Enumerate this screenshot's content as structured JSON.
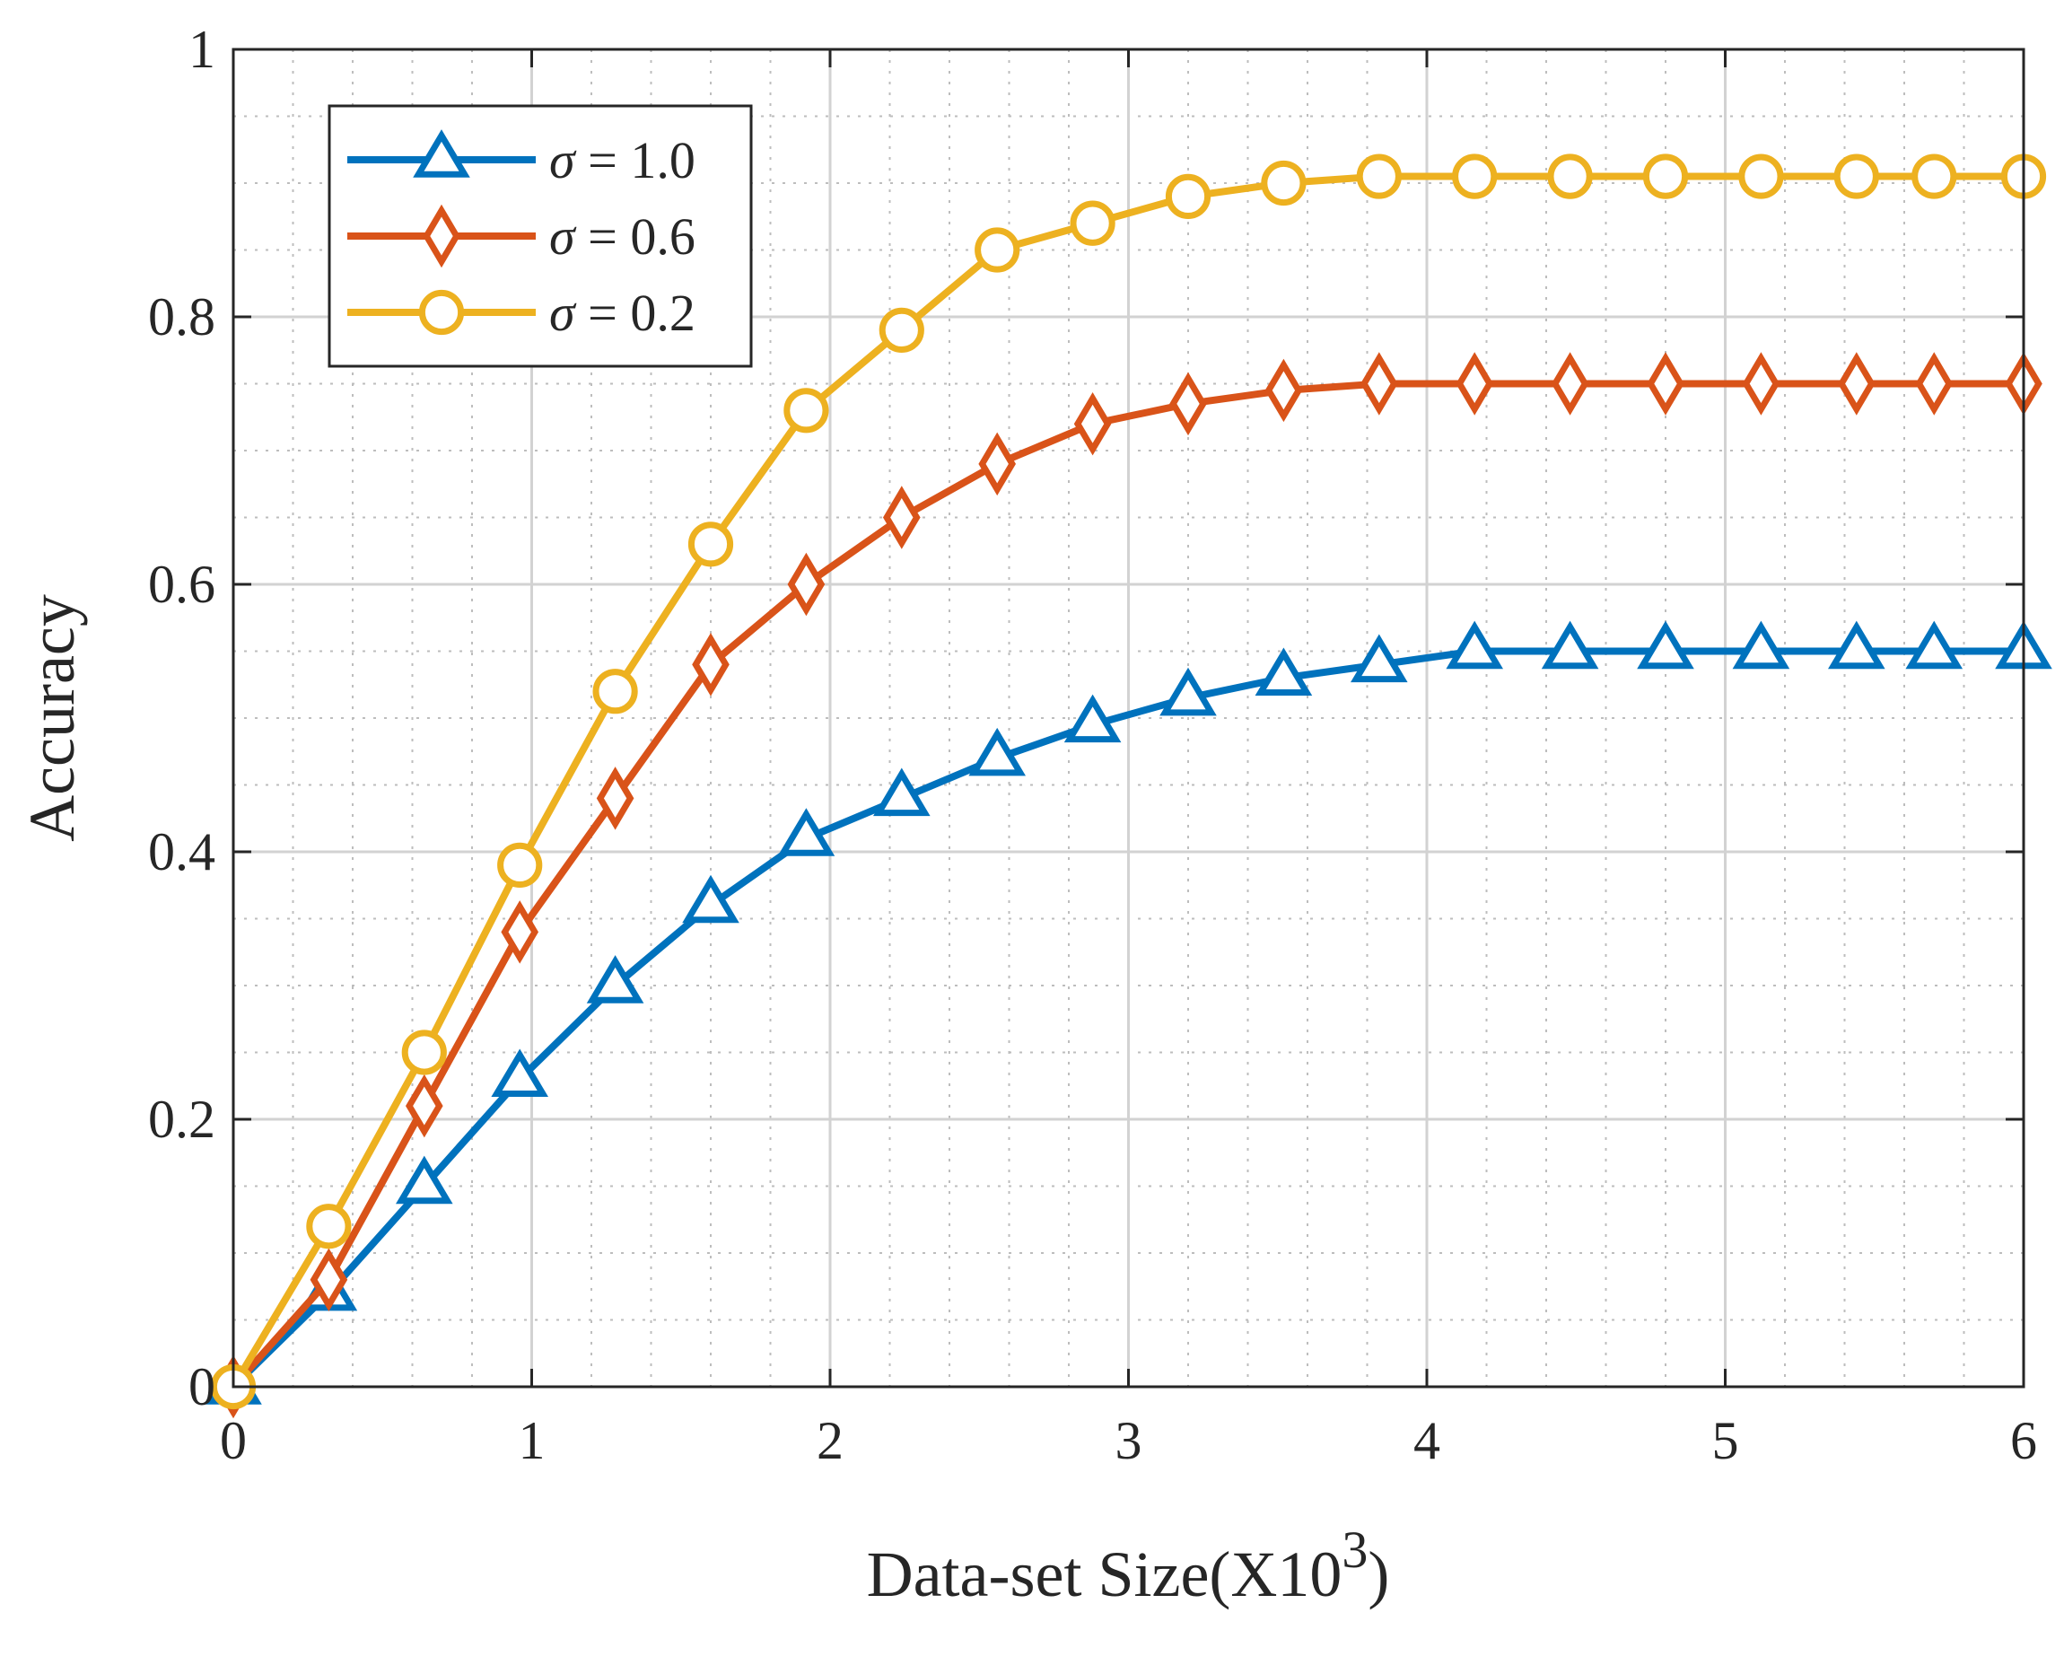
{
  "chart_data": {
    "type": "line",
    "title": "",
    "xlabel": "Data-set Size(X10",
    "xlabel_superscript": "3",
    "xlabel_suffix": ")",
    "ylabel": "Accuracy",
    "xlim": [
      0,
      6
    ],
    "ylim": [
      0,
      1
    ],
    "xticks": [
      0,
      1,
      2,
      3,
      4,
      5,
      6
    ],
    "xtick_labels": [
      "0",
      "1",
      "2",
      "3",
      "4",
      "5",
      "6"
    ],
    "yticks": [
      0,
      0.2,
      0.4,
      0.6,
      0.8,
      1
    ],
    "ytick_labels": [
      "0",
      "0.2",
      "0.4",
      "0.6",
      "0.8",
      "1"
    ],
    "grid": true,
    "minor_grid": true,
    "legend_position": "top-left",
    "x": [
      0,
      0.32,
      0.64,
      0.96,
      1.28,
      1.6,
      1.92,
      2.24,
      2.56,
      2.88,
      3.2,
      3.52,
      3.84,
      4.16,
      4.48,
      4.8,
      5.12,
      5.44,
      5.7,
      6.0
    ],
    "series": [
      {
        "name": "σ = 1.0",
        "symbol": "σ",
        "value_text": " = 1.0",
        "color": "#0072BD",
        "marker": "triangle",
        "values": [
          0.0,
          0.07,
          0.15,
          0.23,
          0.3,
          0.36,
          0.41,
          0.44,
          0.47,
          0.495,
          0.515,
          0.53,
          0.54,
          0.55,
          0.55,
          0.55,
          0.55,
          0.55,
          0.55,
          0.55
        ]
      },
      {
        "name": "σ = 0.6",
        "symbol": "σ",
        "value_text": " = 0.6",
        "color": "#D95319",
        "marker": "diamond",
        "values": [
          0.0,
          0.08,
          0.21,
          0.34,
          0.44,
          0.54,
          0.6,
          0.65,
          0.69,
          0.72,
          0.735,
          0.745,
          0.75,
          0.75,
          0.75,
          0.75,
          0.75,
          0.75,
          0.75,
          0.75
        ]
      },
      {
        "name": "σ = 0.2",
        "symbol": "σ",
        "value_text": " = 0.2",
        "color": "#EDB120",
        "marker": "circle",
        "values": [
          0.0,
          0.12,
          0.25,
          0.39,
          0.52,
          0.63,
          0.73,
          0.79,
          0.85,
          0.87,
          0.89,
          0.9,
          0.905,
          0.905,
          0.905,
          0.905,
          0.905,
          0.905,
          0.905,
          0.905
        ]
      }
    ]
  }
}
